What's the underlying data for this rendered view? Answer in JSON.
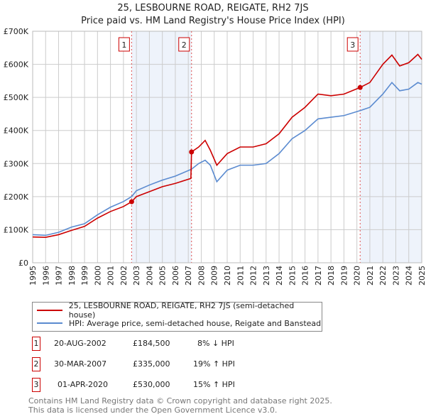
{
  "chart_data": {
    "type": "line",
    "title": "25, LESBOURNE ROAD, REIGATE, RH2 7JS",
    "subtitle": "Price paid vs. HM Land Registry's House Price Index (HPI)",
    "xlim": [
      1995,
      2025
    ],
    "ylim": [
      0,
      700000
    ],
    "y_ticks": [
      0,
      100000,
      200000,
      300000,
      400000,
      500000,
      600000,
      700000
    ],
    "y_tick_labels": [
      "£0",
      "£100K",
      "£200K",
      "£300K",
      "£400K",
      "£500K",
      "£600K",
      "£700K"
    ],
    "x_ticks": [
      1995,
      1996,
      1997,
      1998,
      1999,
      2000,
      2001,
      2002,
      2003,
      2004,
      2005,
      2006,
      2007,
      2008,
      2009,
      2010,
      2011,
      2012,
      2013,
      2014,
      2015,
      2016,
      2017,
      2018,
      2019,
      2020,
      2021,
      2022,
      2023,
      2024,
      2025
    ],
    "grid": true,
    "series": [
      {
        "name": "25, LESBOURNE ROAD, REIGATE, RH2 7JS (semi-detached house)",
        "color": "#cc0000",
        "x": [
          1995,
          1996,
          1997,
          1998,
          1999,
          2000,
          2001,
          2002,
          2002.63,
          2003,
          2004,
          2005,
          2006,
          2007.2,
          2007.25,
          2007.8,
          2008.3,
          2008.7,
          2009.2,
          2010,
          2011,
          2012,
          2013,
          2014,
          2015,
          2016,
          2017,
          2018,
          2019,
          2020.25,
          2021,
          2022,
          2022.7,
          2023.3,
          2024,
          2024.7,
          2025
        ],
        "y": [
          78000,
          77000,
          85000,
          98000,
          110000,
          135000,
          155000,
          170000,
          184500,
          200000,
          215000,
          230000,
          240000,
          255000,
          335000,
          350000,
          370000,
          340000,
          295000,
          330000,
          350000,
          350000,
          360000,
          390000,
          440000,
          470000,
          510000,
          505000,
          510000,
          530000,
          545000,
          600000,
          628000,
          595000,
          605000,
          630000,
          615000
        ]
      },
      {
        "name": "HPI: Average price, semi-detached house, Reigate and Banstead",
        "color": "#5b8bd0",
        "x": [
          1995,
          1996,
          1997,
          1998,
          1999,
          2000,
          2001,
          2002,
          2002.63,
          2003,
          2004,
          2005,
          2006,
          2007.25,
          2007.8,
          2008.3,
          2008.7,
          2009.2,
          2010,
          2011,
          2012,
          2013,
          2014,
          2015,
          2016,
          2017,
          2018,
          2019,
          2020.25,
          2021,
          2022,
          2022.7,
          2023.3,
          2024,
          2024.7,
          2025
        ],
        "y": [
          85000,
          83000,
          92000,
          108000,
          118000,
          145000,
          168000,
          185000,
          200000,
          218000,
          235000,
          250000,
          262000,
          283000,
          300000,
          310000,
          295000,
          245000,
          280000,
          295000,
          295000,
          300000,
          330000,
          375000,
          400000,
          435000,
          440000,
          445000,
          460000,
          470000,
          510000,
          545000,
          520000,
          525000,
          545000,
          540000
        ]
      }
    ],
    "sales": [
      {
        "id": "1",
        "date": "20-AUG-2002",
        "x": 2002.63,
        "price": 184500,
        "price_label": "£184,500",
        "hpi": "8% ↓ HPI"
      },
      {
        "id": "2",
        "date": "30-MAR-2007",
        "x": 2007.25,
        "price": 335000,
        "price_label": "£335,000",
        "hpi": "19% ↑ HPI"
      },
      {
        "id": "3",
        "date": "01-APR-2020",
        "x": 2020.25,
        "price": 530000,
        "price_label": "£530,000",
        "hpi": "15% ↑ HPI"
      }
    ],
    "shaded_ranges": [
      [
        2002.63,
        2007.25
      ],
      [
        2020.25,
        2025
      ]
    ]
  },
  "footer": {
    "line1": "Contains HM Land Registry data © Crown copyright and database right 2025.",
    "line2": "This data is licensed under the Open Government Licence v3.0."
  }
}
